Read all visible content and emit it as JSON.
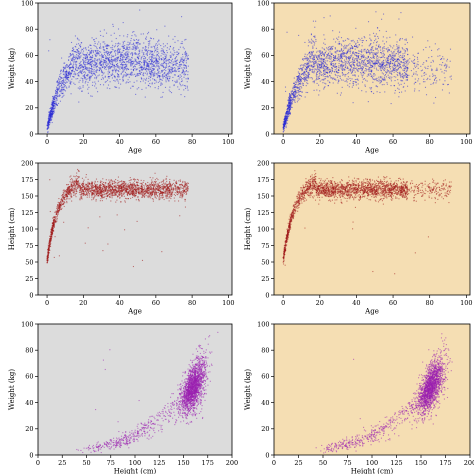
{
  "chart_data": [
    {
      "type": "scatter",
      "panel": "top-left",
      "background": "#dcdcdc",
      "color": "#2b2bd6",
      "xlabel": "Age",
      "ylabel": "Weight (kg)",
      "xlim": [
        -5,
        102
      ],
      "ylim": [
        0,
        100
      ],
      "xticks": [
        "0",
        "20",
        "40",
        "60",
        "80",
        "100"
      ],
      "yticks": [
        "0",
        "20",
        "40",
        "60",
        "80",
        "100"
      ],
      "relation": "age-weight",
      "approx_points": 2200
    },
    {
      "type": "scatter",
      "panel": "top-right",
      "background": "#f5deb3",
      "color": "#2b2bd6",
      "xlabel": "Age",
      "ylabel": "Weight (kg)",
      "xlim": [
        -5,
        102
      ],
      "ylim": [
        0,
        100
      ],
      "xticks": [
        "0",
        "20",
        "40",
        "60",
        "80",
        "100"
      ],
      "yticks": [
        "0",
        "20",
        "40",
        "60",
        "80",
        "100"
      ],
      "relation": "age-weight",
      "approx_points": 2200
    },
    {
      "type": "scatter",
      "panel": "middle-left",
      "background": "#dcdcdc",
      "color": "#a11a1a",
      "xlabel": "Age",
      "ylabel": "Height (cm)",
      "xlim": [
        -5,
        102
      ],
      "ylim": [
        0,
        200
      ],
      "xticks": [
        "0",
        "20",
        "40",
        "60",
        "80",
        "100"
      ],
      "yticks": [
        "0",
        "25",
        "50",
        "75",
        "100",
        "125",
        "150",
        "175",
        "200"
      ],
      "relation": "age-height",
      "approx_points": 2200
    },
    {
      "type": "scatter",
      "panel": "middle-right",
      "background": "#f5deb3",
      "color": "#a11a1a",
      "xlabel": "Age",
      "ylabel": "Height (cm)",
      "xlim": [
        -5,
        102
      ],
      "ylim": [
        0,
        200
      ],
      "xticks": [
        "0",
        "20",
        "40",
        "60",
        "80",
        "100"
      ],
      "yticks": [
        "0",
        "25",
        "50",
        "75",
        "100",
        "125",
        "150",
        "175",
        "200"
      ],
      "relation": "age-height",
      "approx_points": 2200
    },
    {
      "type": "scatter",
      "panel": "bottom-left",
      "background": "#dcdcdc",
      "color": "#9b1fb0",
      "xlabel": "Height (cm)",
      "ylabel": "Weight (kg)",
      "xlim": [
        0,
        200
      ],
      "ylim": [
        0,
        100
      ],
      "xticks": [
        "0",
        "25",
        "50",
        "75",
        "100",
        "125",
        "150",
        "175",
        "200"
      ],
      "yticks": [
        "0",
        "20",
        "40",
        "60",
        "80",
        "100"
      ],
      "relation": "height-weight",
      "approx_points": 2200
    },
    {
      "type": "scatter",
      "panel": "bottom-right",
      "background": "#f5deb3",
      "color": "#9b1fb0",
      "xlabel": "Height (cm)",
      "ylabel": "Weight (kg)",
      "xlim": [
        0,
        200
      ],
      "ylim": [
        0,
        100
      ],
      "xticks": [
        "0",
        "25",
        "50",
        "75",
        "100",
        "125",
        "150",
        "175",
        "200"
      ],
      "yticks": [
        "0",
        "20",
        "40",
        "60",
        "80",
        "100"
      ],
      "relation": "height-weight",
      "approx_points": 2200
    }
  ]
}
